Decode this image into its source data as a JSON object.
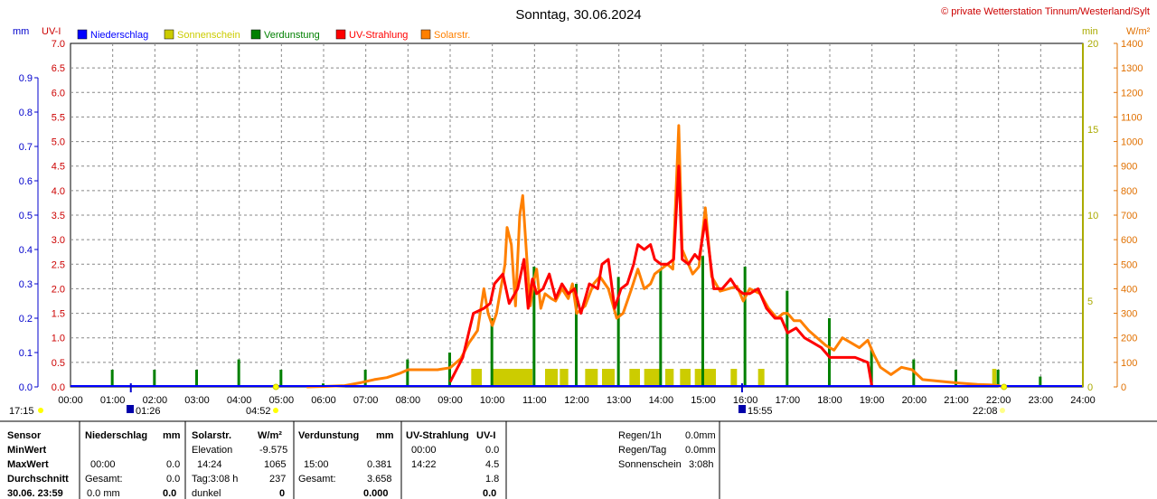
{
  "chart_data": {
    "type": "line",
    "title": "Sonntag, 30.06.2024",
    "copyright": "© private Wetterstation Tinnum/Westerland/Sylt",
    "legend": [
      {
        "name": "Niederschlag",
        "color": "#0000ff"
      },
      {
        "name": "Sonnenschein",
        "color": "#cccc00"
      },
      {
        "name": "Verdunstung",
        "color": "#008000"
      },
      {
        "name": "UV-Strahlung",
        "color": "#ff0000"
      },
      {
        "name": "Solarstr.",
        "color": "#ff8000"
      }
    ],
    "axis_units": {
      "mm": "mm",
      "uvi": "UV-I",
      "min": "min",
      "wm2": "W/m²"
    },
    "x_ticks": [
      "00:00",
      "01:00",
      "02:00",
      "03:00",
      "04:00",
      "05:00",
      "06:00",
      "07:00",
      "08:00",
      "09:00",
      "10:00",
      "11:00",
      "12:00",
      "13:00",
      "14:00",
      "15:00",
      "16:00",
      "17:00",
      "18:00",
      "19:00",
      "20:00",
      "21:00",
      "22:00",
      "23:00",
      "24:00"
    ],
    "y_mm_ticks": [
      "0.0",
      "0.1",
      "0.2",
      "0.3",
      "0.4",
      "0.5",
      "0.6",
      "0.7",
      "0.8",
      "0.9"
    ],
    "y_uvi_ticks": [
      "0.0",
      "0.5",
      "1.0",
      "1.5",
      "2.0",
      "2.5",
      "3.0",
      "3.5",
      "4.0",
      "4.5",
      "5.0",
      "5.5",
      "6.0",
      "6.5",
      "7.0"
    ],
    "y_min_ticks": [
      "0",
      "5",
      "10",
      "15",
      "20"
    ],
    "y_wm2_ticks": [
      "0",
      "100",
      "200",
      "300",
      "400",
      "500",
      "600",
      "700",
      "800",
      "900",
      "1000",
      "1100",
      "1200",
      "1300",
      "1400"
    ],
    "uvi_range": [
      0,
      7
    ],
    "wm2_range": [
      0,
      1400
    ],
    "min_range": [
      0,
      20
    ],
    "mm_range": [
      0,
      1.0
    ],
    "grid": true,
    "uv_series": [
      [
        9.0,
        0.1
      ],
      [
        9.3,
        0.6
      ],
      [
        9.55,
        1.5
      ],
      [
        9.8,
        1.6
      ],
      [
        9.95,
        1.7
      ],
      [
        10.05,
        2.1
      ],
      [
        10.25,
        2.3
      ],
      [
        10.4,
        1.7
      ],
      [
        10.6,
        2.0
      ],
      [
        10.75,
        2.6
      ],
      [
        10.85,
        1.6
      ],
      [
        10.95,
        2.2
      ],
      [
        11.05,
        1.9
      ],
      [
        11.2,
        2.0
      ],
      [
        11.35,
        2.3
      ],
      [
        11.5,
        1.8
      ],
      [
        11.65,
        2.1
      ],
      [
        11.8,
        1.9
      ],
      [
        11.95,
        2.0
      ],
      [
        12.1,
        1.5
      ],
      [
        12.3,
        2.1
      ],
      [
        12.5,
        2.0
      ],
      [
        12.6,
        2.5
      ],
      [
        12.75,
        2.6
      ],
      [
        12.9,
        1.6
      ],
      [
        13.05,
        2.0
      ],
      [
        13.2,
        2.1
      ],
      [
        13.35,
        2.5
      ],
      [
        13.45,
        2.9
      ],
      [
        13.6,
        2.8
      ],
      [
        13.75,
        2.9
      ],
      [
        13.85,
        2.6
      ],
      [
        14.0,
        2.5
      ],
      [
        14.15,
        2.5
      ],
      [
        14.3,
        2.6
      ],
      [
        14.42,
        4.5
      ],
      [
        14.5,
        2.6
      ],
      [
        14.65,
        2.5
      ],
      [
        14.8,
        2.7
      ],
      [
        14.9,
        2.6
      ],
      [
        15.05,
        3.4
      ],
      [
        15.25,
        2.0
      ],
      [
        15.45,
        2.0
      ],
      [
        15.65,
        2.2
      ],
      [
        15.8,
        2.0
      ],
      [
        15.95,
        1.9
      ],
      [
        16.1,
        1.9
      ],
      [
        16.3,
        2.0
      ],
      [
        16.5,
        1.6
      ],
      [
        16.7,
        1.4
      ],
      [
        16.85,
        1.4
      ],
      [
        17.0,
        1.1
      ],
      [
        17.2,
        1.2
      ],
      [
        17.4,
        1.0
      ],
      [
        17.6,
        0.9
      ],
      [
        17.8,
        0.8
      ],
      [
        18.0,
        0.6
      ],
      [
        18.3,
        0.6
      ],
      [
        18.6,
        0.6
      ],
      [
        18.9,
        0.5
      ],
      [
        19.0,
        0.0
      ]
    ],
    "solar_series": [
      [
        5.6,
        0
      ],
      [
        6.0,
        2
      ],
      [
        6.5,
        5
      ],
      [
        6.9,
        18
      ],
      [
        7.2,
        30
      ],
      [
        7.5,
        38
      ],
      [
        7.8,
        55
      ],
      [
        8.0,
        70
      ],
      [
        8.4,
        70
      ],
      [
        8.7,
        70
      ],
      [
        9.0,
        78
      ],
      [
        9.25,
        115
      ],
      [
        9.45,
        180
      ],
      [
        9.65,
        230
      ],
      [
        9.8,
        400
      ],
      [
        9.9,
        300
      ],
      [
        10.0,
        250
      ],
      [
        10.1,
        300
      ],
      [
        10.2,
        400
      ],
      [
        10.3,
        500
      ],
      [
        10.35,
        650
      ],
      [
        10.45,
        580
      ],
      [
        10.55,
        330
      ],
      [
        10.65,
        700
      ],
      [
        10.72,
        780
      ],
      [
        10.82,
        520
      ],
      [
        10.9,
        330
      ],
      [
        10.98,
        430
      ],
      [
        11.05,
        480
      ],
      [
        11.15,
        320
      ],
      [
        11.25,
        380
      ],
      [
        11.4,
        360
      ],
      [
        11.5,
        350
      ],
      [
        11.65,
        400
      ],
      [
        11.8,
        360
      ],
      [
        11.9,
        420
      ],
      [
        12.0,
        300
      ],
      [
        12.2,
        330
      ],
      [
        12.4,
        420
      ],
      [
        12.55,
        450
      ],
      [
        12.75,
        400
      ],
      [
        12.95,
        280
      ],
      [
        13.1,
        300
      ],
      [
        13.3,
        400
      ],
      [
        13.45,
        480
      ],
      [
        13.6,
        400
      ],
      [
        13.75,
        420
      ],
      [
        13.85,
        460
      ],
      [
        14.0,
        480
      ],
      [
        14.15,
        500
      ],
      [
        14.28,
        480
      ],
      [
        14.42,
        1065
      ],
      [
        14.5,
        560
      ],
      [
        14.6,
        520
      ],
      [
        14.75,
        460
      ],
      [
        14.9,
        490
      ],
      [
        15.05,
        730
      ],
      [
        15.2,
        450
      ],
      [
        15.4,
        390
      ],
      [
        15.6,
        400
      ],
      [
        15.8,
        410
      ],
      [
        15.95,
        350
      ],
      [
        16.1,
        400
      ],
      [
        16.35,
        380
      ],
      [
        16.55,
        320
      ],
      [
        16.75,
        280
      ],
      [
        16.9,
        300
      ],
      [
        17.0,
        300
      ],
      [
        17.15,
        270
      ],
      [
        17.3,
        270
      ],
      [
        17.5,
        230
      ],
      [
        17.7,
        200
      ],
      [
        17.9,
        170
      ],
      [
        18.1,
        150
      ],
      [
        18.3,
        200
      ],
      [
        18.5,
        180
      ],
      [
        18.7,
        160
      ],
      [
        18.9,
        190
      ],
      [
        19.05,
        130
      ],
      [
        19.2,
        80
      ],
      [
        19.45,
        50
      ],
      [
        19.7,
        80
      ],
      [
        19.95,
        70
      ],
      [
        20.2,
        30
      ],
      [
        20.5,
        25
      ],
      [
        20.8,
        20
      ],
      [
        21.1,
        15
      ],
      [
        21.5,
        10
      ],
      [
        21.8,
        8
      ],
      [
        22.0,
        5
      ],
      [
        22.1,
        0
      ]
    ],
    "evap_bars": [
      [
        1,
        0.05
      ],
      [
        2,
        0.05
      ],
      [
        3,
        0.05
      ],
      [
        4,
        0.08
      ],
      [
        5,
        0.05
      ],
      [
        6,
        0.01
      ],
      [
        7,
        0.05
      ],
      [
        8,
        0.08
      ],
      [
        9,
        0.1
      ],
      [
        10,
        0.2
      ],
      [
        11,
        0.35
      ],
      [
        12,
        0.3
      ],
      [
        13,
        0.32
      ],
      [
        14,
        0.34
      ],
      [
        15,
        0.381
      ],
      [
        16,
        0.35
      ],
      [
        17,
        0.28
      ],
      [
        18,
        0.2
      ],
      [
        19,
        0.11
      ],
      [
        20,
        0.08
      ],
      [
        21,
        0.05
      ],
      [
        22,
        0.05
      ],
      [
        23,
        0.03
      ]
    ],
    "sun_bars": [
      [
        9.5,
        9.75
      ],
      [
        9.98,
        10.95
      ],
      [
        11.25,
        11.55
      ],
      [
        11.6,
        11.8
      ],
      [
        12.2,
        12.5
      ],
      [
        12.6,
        12.9
      ],
      [
        13.25,
        13.5
      ],
      [
        13.6,
        14.0
      ],
      [
        14.1,
        14.3
      ],
      [
        14.45,
        14.7
      ],
      [
        14.8,
        15.3
      ],
      [
        15.65,
        15.8
      ],
      [
        16.3,
        16.45
      ],
      [
        21.85,
        21.95
      ]
    ],
    "sunrise": "04:52",
    "sunset": "22:08",
    "moonrise": "01:26",
    "moonset": "15:55",
    "left_time": "17:15",
    "markers_x": [
      1.43,
      15.92
    ],
    "sun_markers_x": [
      4.87,
      22.13
    ]
  },
  "table": {
    "sensor": {
      "h": "Sensor",
      "r": [
        "MinWert",
        "MaxWert",
        "Durchschnitt",
        "30.06. 23:59"
      ]
    },
    "nieder": {
      "h": "Niederschlag",
      "u": "mm",
      "r1": [
        "",
        "00:00",
        "Gesamt:",
        "0.0 mm"
      ],
      "r2": [
        "",
        "0.0",
        "0.0",
        "0.0"
      ]
    },
    "solar": {
      "h": "Solarstr.",
      "u": "W/m²",
      "r1": [
        "Elevation",
        "14:24",
        "Tag:3:08 h",
        "dunkel"
      ],
      "r2": [
        "-9.575",
        "1065",
        "237",
        "0"
      ]
    },
    "verd": {
      "h": "Verdunstung",
      "u": "mm",
      "r1": [
        "",
        "15:00",
        "Gesamt:",
        ""
      ],
      "r2": [
        "",
        "0.381",
        "3.658",
        "0.000"
      ]
    },
    "uv": {
      "h": "UV-Strahlung",
      "u": "UV-I",
      "r1": [
        "00:00",
        "14:22",
        "",
        ""
      ],
      "r2": [
        "0.0",
        "4.5",
        "1.8",
        "0.0"
      ]
    },
    "extra": {
      "l": [
        "Regen/1h",
        "Regen/Tag",
        "Sonnenschein"
      ],
      "v": [
        "0.0mm",
        "0.0mm",
        "3:08h"
      ]
    }
  }
}
